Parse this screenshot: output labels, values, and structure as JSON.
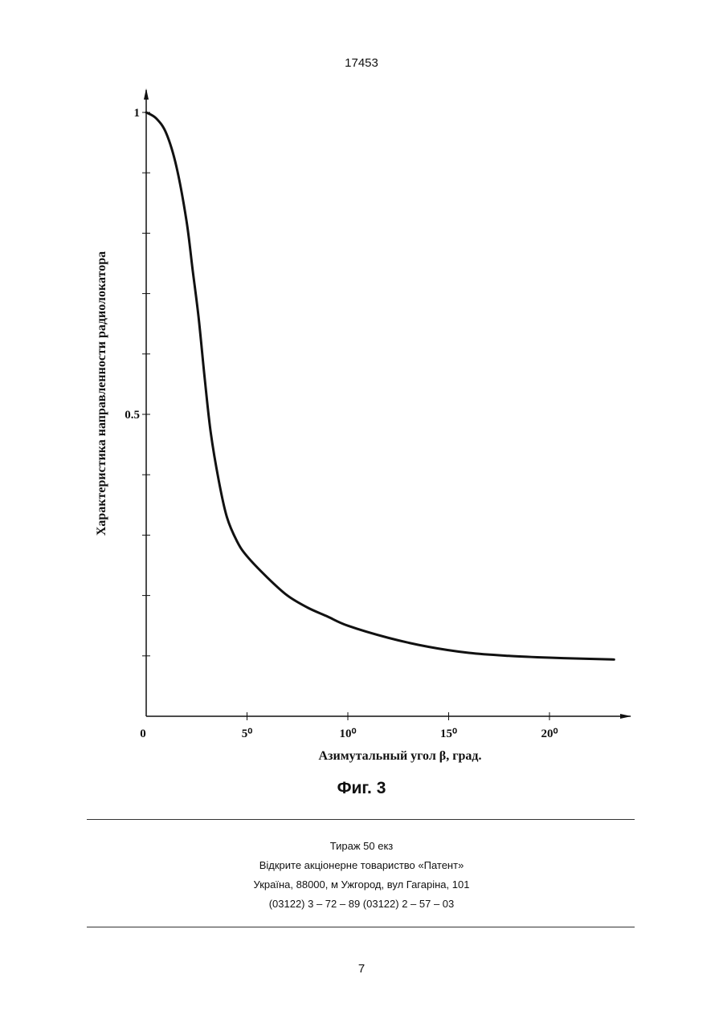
{
  "header": {
    "page_number": "17453"
  },
  "figure": {
    "caption": "Фиг. 3"
  },
  "chart_data": {
    "type": "line",
    "title": "",
    "xlabel": "Азимутальный угол β, град.",
    "ylabel": "Характеристика направленности радиолокатора",
    "x_ticks": [
      {
        "value": 0,
        "label": "0"
      },
      {
        "value": 5,
        "label": "5⁰"
      },
      {
        "value": 10,
        "label": "10⁰"
      },
      {
        "value": 15,
        "label": "15⁰"
      },
      {
        "value": 20,
        "label": "20⁰"
      }
    ],
    "y_ticks": [
      {
        "value": 0.5,
        "label": "0.5"
      },
      {
        "value": 1,
        "label": "1"
      }
    ],
    "y_minor_ticks": [
      0.1,
      0.2,
      0.3,
      0.4,
      0.6,
      0.7,
      0.8,
      0.9
    ],
    "xlim": [
      0,
      24
    ],
    "ylim": [
      0,
      1.03
    ],
    "grid": false,
    "series": [
      {
        "x": [
          0,
          0.5,
          1,
          1.5,
          2,
          2.3,
          2.6,
          2.9,
          3.2,
          3.6,
          4,
          4.5,
          5,
          6,
          7,
          8,
          9,
          10,
          12,
          14,
          16,
          18,
          20,
          22,
          23.2
        ],
        "y": [
          1,
          0.99,
          0.965,
          0.91,
          0.82,
          0.74,
          0.66,
          0.56,
          0.47,
          0.39,
          0.33,
          0.29,
          0.265,
          0.23,
          0.2,
          0.18,
          0.165,
          0.15,
          0.13,
          0.115,
          0.105,
          0.1,
          0.097,
          0.095,
          0.094
        ]
      }
    ]
  },
  "footer": {
    "circulation": "Тираж 50 екз",
    "publisher": "Відкрите акціонерне товариство «Патент»",
    "address": "Україна, 88000, м  Ужгород, вул  Гагаріна, 101",
    "phones": "(03122) 3 – 72 – 89  (03122) 2 – 57 – 03"
  },
  "page_number_bottom": "7"
}
